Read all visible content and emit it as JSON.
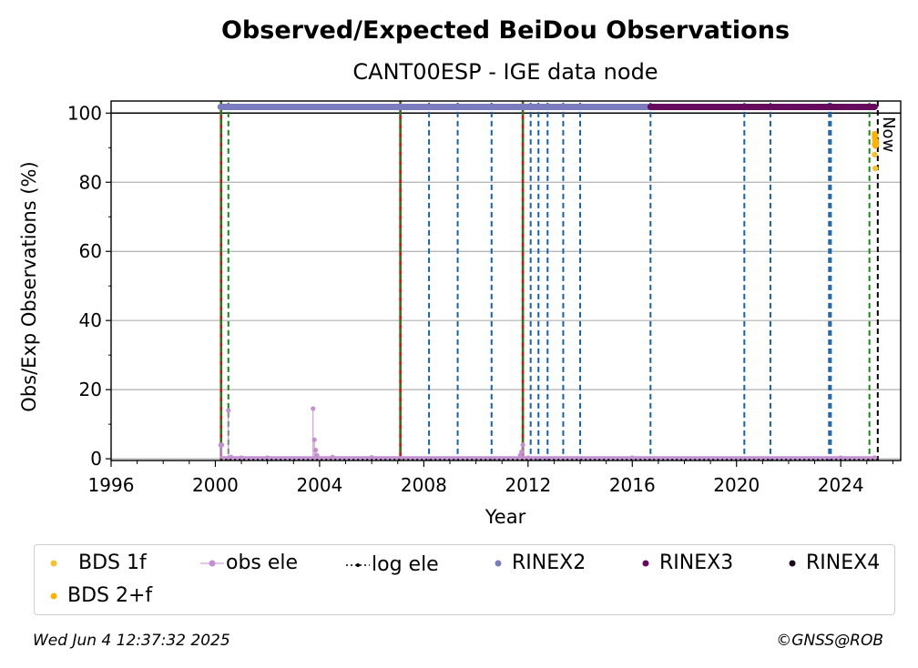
{
  "chart_data": {
    "type": "scatter",
    "title": "Observed/Expected BeiDou Observations",
    "subtitle": "CANT00ESP - IGE data node",
    "xlabel": "Year",
    "ylabel": "Obs/Exp Observations (%)",
    "xlim": [
      1996,
      2026.3
    ],
    "ylim": [
      -0.5,
      103.5
    ],
    "x_ticks": [
      "1996",
      "2000",
      "2004",
      "2008",
      "2012",
      "2016",
      "2020",
      "2024"
    ],
    "y_ticks": [
      "0",
      "20",
      "40",
      "60",
      "80",
      "100"
    ],
    "grid": "horizontal",
    "now_label": "Now",
    "now_x": 2025.42,
    "event_lines": {
      "red_green": [
        2000.22,
        2007.1,
        2011.8
      ],
      "green": [
        2000.5,
        2025.1
      ],
      "blue": [
        2008.2,
        2009.3,
        2010.6,
        2012.1,
        2012.4,
        2012.75,
        2013.35,
        2014.0,
        2016.7,
        2020.3,
        2021.3,
        2023.55,
        2023.62
      ]
    },
    "series": [
      {
        "name": "BDS 1f",
        "color": "#f6c02f",
        "points": [
          [
            2025.3,
            88
          ],
          [
            2025.33,
            84
          ]
        ]
      },
      {
        "name": "obs ele",
        "color": "#c38fd2",
        "points": [
          [
            2000.2,
            4
          ],
          [
            2000.25,
            4
          ],
          [
            2000.5,
            14
          ],
          [
            2000.6,
            0.5
          ],
          [
            2001.0,
            0.3
          ],
          [
            2002.0,
            0.3
          ],
          [
            2003.75,
            14.5
          ],
          [
            2003.8,
            5.5
          ],
          [
            2003.85,
            2.5
          ],
          [
            2003.9,
            1
          ],
          [
            2004.5,
            0.5
          ],
          [
            2006.0,
            0.4
          ],
          [
            2011.8,
            4
          ],
          [
            2011.75,
            2
          ],
          [
            2011.7,
            1
          ],
          [
            2012.0,
            0.3
          ],
          [
            2016.0,
            0.3
          ],
          [
            2024.0,
            0.3
          ],
          [
            2025.3,
            0.3
          ]
        ]
      },
      {
        "name": "log ele",
        "color": "#000000",
        "points": [
          [
            2000.2,
            -0.3
          ],
          [
            2025.4,
            -0.3
          ]
        ]
      },
      {
        "name": "RINEX2",
        "color": "#7b7cbf",
        "range": [
          2000.2,
          2016.7
        ],
        "y": 101.8
      },
      {
        "name": "RINEX3",
        "color": "#650a5c",
        "range": [
          2016.7,
          2025.3
        ],
        "y": 101.8
      },
      {
        "name": "RINEX4",
        "color": "#1a0b1a",
        "points": []
      },
      {
        "name": "BDS 2+f",
        "color": "#ffb000",
        "points": [
          [
            2025.3,
            94
          ],
          [
            2025.3,
            93
          ],
          [
            2025.32,
            92
          ],
          [
            2025.3,
            91
          ],
          [
            2025.33,
            90.5
          ],
          [
            2025.35,
            92
          ],
          [
            2025.36,
            91
          ],
          [
            2025.33,
            93.5
          ]
        ]
      }
    ]
  },
  "legend": {
    "items": [
      {
        "label": "BDS 1f"
      },
      {
        "label": "obs ele"
      },
      {
        "label": "log ele"
      },
      {
        "label": "RINEX2"
      },
      {
        "label": "RINEX3"
      },
      {
        "label": "RINEX4"
      },
      {
        "label": "BDS 2+f"
      }
    ]
  },
  "footer": {
    "timestamp": "Wed Jun  4 12:37:32 2025",
    "credit": "©GNSS@ROB"
  }
}
